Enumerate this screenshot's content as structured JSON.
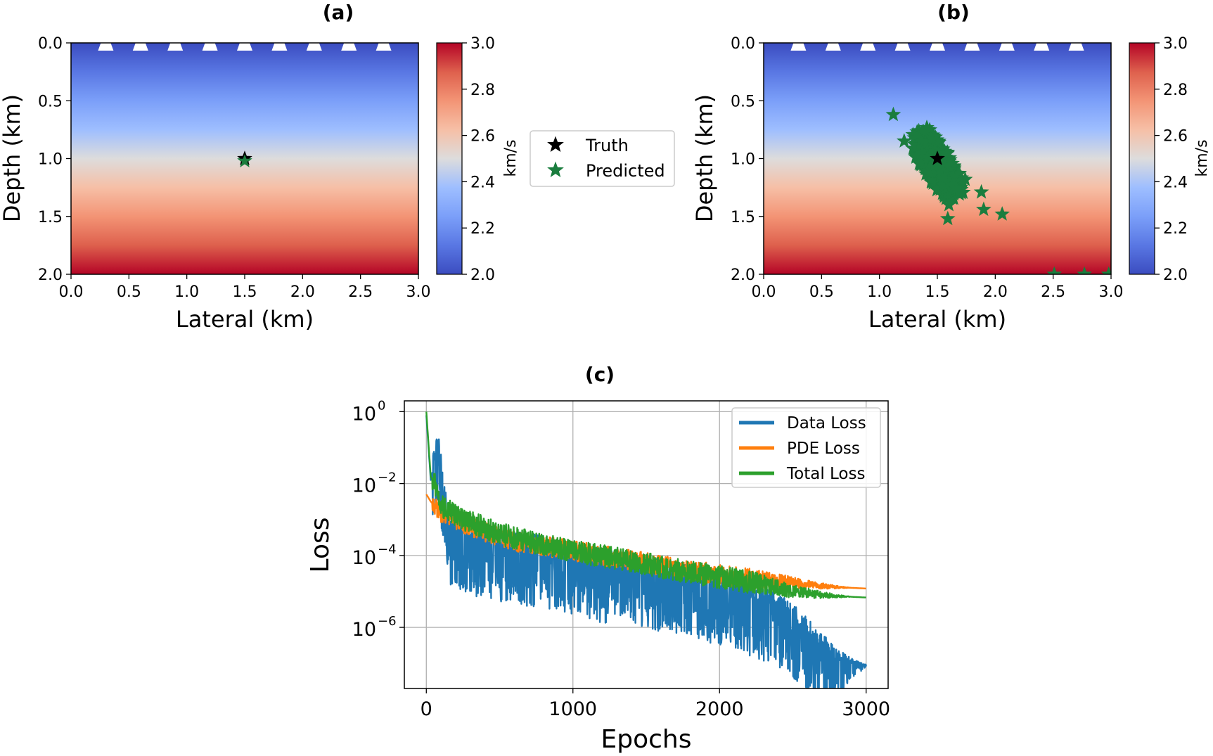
{
  "panels": {
    "a": {
      "label": "(a)",
      "xlabel": "Lateral (km)",
      "ylabel": "Depth (km)"
    },
    "b": {
      "label": "(b)",
      "xlabel": "Lateral (km)",
      "ylabel": "Depth (km)"
    },
    "c": {
      "label": "(c)",
      "xlabel": "Epochs",
      "ylabel": "Loss"
    }
  },
  "colorbar": {
    "label": "km/s",
    "ticks": [
      "2.0",
      "2.2",
      "2.4",
      "2.6",
      "2.8",
      "3.0"
    ]
  },
  "legend_top": {
    "truth": "Truth",
    "predicted": "Predicted"
  },
  "legend_c": {
    "data": "Data Loss",
    "pde": "PDE Loss",
    "total": "Total Loss"
  },
  "colors": {
    "truth": "#000000",
    "predicted": "#1a7d3e",
    "receiver": "#ffffff",
    "data_loss": "#1f77b4",
    "pde_loss": "#ff7f0e",
    "total_loss": "#2ca02c",
    "cmap_low": "#3b4cc0",
    "cmap_mid": "#dddddd",
    "cmap_high": "#b40426"
  },
  "chart_data": [
    {
      "type": "heatmap",
      "panel": "a",
      "title": "(a)",
      "xlabel": "Lateral (km)",
      "ylabel": "Depth (km)",
      "xlim": [
        0,
        3
      ],
      "ylim": [
        2,
        0
      ],
      "x_ticks": [
        "0.0",
        "0.5",
        "1.0",
        "1.5",
        "2.0",
        "2.5",
        "3.0"
      ],
      "y_ticks": [
        "0.0",
        "0.5",
        "1.0",
        "1.5",
        "2.0"
      ],
      "velocity_model": {
        "top_value": 2.0,
        "bottom_value": 3.0,
        "unit": "km/s",
        "vary": "linear with depth"
      },
      "color_range": [
        2.0,
        3.0
      ],
      "receivers_x": [
        0.3,
        0.6,
        0.9,
        1.2,
        1.5,
        1.8,
        2.1,
        2.4,
        2.7
      ],
      "receivers_depth": 0.0,
      "truth": {
        "x": 1.5,
        "z": 1.0
      },
      "predicted": [
        {
          "x": 1.5,
          "z": 1.02
        }
      ]
    },
    {
      "type": "heatmap",
      "panel": "b",
      "title": "(b)",
      "xlabel": "Lateral (km)",
      "ylabel": "Depth (km)",
      "xlim": [
        0,
        3
      ],
      "ylim": [
        2,
        0
      ],
      "x_ticks": [
        "0.0",
        "0.5",
        "1.0",
        "1.5",
        "2.0",
        "2.5",
        "3.0"
      ],
      "y_ticks": [
        "0.0",
        "0.5",
        "1.0",
        "1.5",
        "2.0"
      ],
      "velocity_model": {
        "top_value": 2.0,
        "bottom_value": 3.0,
        "unit": "km/s",
        "vary": "linear with depth"
      },
      "color_range": [
        2.0,
        3.0
      ],
      "receivers_x": [
        0.3,
        0.6,
        0.9,
        1.2,
        1.5,
        1.8,
        2.1,
        2.4,
        2.7
      ],
      "receivers_depth": 0.0,
      "truth": {
        "x": 1.5,
        "z": 1.0
      },
      "predicted_cluster": {
        "center": [
          1.5,
          1.05
        ],
        "axis_dir": [
          0.55,
          0.84
        ],
        "semi_major": 0.33,
        "semi_minor": 0.13
      },
      "predicted_outliers": [
        {
          "x": 1.12,
          "z": 0.62
        },
        {
          "x": 1.6,
          "z": 1.4
        },
        {
          "x": 1.59,
          "z": 1.52
        },
        {
          "x": 1.9,
          "z": 1.44
        },
        {
          "x": 2.06,
          "z": 1.48
        },
        {
          "x": 1.88,
          "z": 1.29
        },
        {
          "x": 2.51,
          "z": 2.0
        },
        {
          "x": 2.77,
          "z": 2.0
        },
        {
          "x": 2.98,
          "z": 2.0
        }
      ]
    },
    {
      "type": "line",
      "panel": "c",
      "title": "(c)",
      "xlabel": "Epochs",
      "ylabel": "Loss",
      "yscale": "log",
      "xlim": [
        -150,
        3150
      ],
      "ylim_exponent": [
        -7.7,
        0.3
      ],
      "x_ticks": [
        "0",
        "1000",
        "2000",
        "3000"
      ],
      "y_ticks": [
        "10",
        "10",
        "10",
        "10"
      ],
      "y_tick_exponents": [
        "0",
        "−2",
        "−4",
        "−6"
      ],
      "grid": true,
      "legend_position": "top-right",
      "series": [
        {
          "name": "Data Loss",
          "color": "#1f77b4",
          "points": [
            [
              0,
              -0.1
            ],
            [
              30,
              -1.9
            ],
            [
              80,
              -0.9
            ],
            [
              150,
              -3.2
            ],
            [
              300,
              -3.5
            ],
            [
              500,
              -3.7
            ],
            [
              800,
              -3.9
            ],
            [
              1100,
              -4.2
            ],
            [
              1400,
              -4.4
            ],
            [
              1700,
              -4.6
            ],
            [
              2000,
              -4.9
            ],
            [
              2200,
              -5.2
            ],
            [
              2400,
              -5.5
            ],
            [
              2500,
              -5.8
            ],
            [
              2600,
              -6.2
            ],
            [
              2700,
              -6.6
            ],
            [
              2800,
              -6.9
            ],
            [
              2900,
              -7.0
            ],
            [
              3000,
              -7.05
            ]
          ],
          "noise_amplitude": 1.0
        },
        {
          "name": "PDE Loss",
          "color": "#ff7f0e",
          "points": [
            [
              0,
              -2.3
            ],
            [
              30,
              -2.5
            ],
            [
              100,
              -2.8
            ],
            [
              300,
              -3.2
            ],
            [
              600,
              -3.6
            ],
            [
              900,
              -3.8
            ],
            [
              1200,
              -4.0
            ],
            [
              1500,
              -4.2
            ],
            [
              1800,
              -4.4
            ],
            [
              2100,
              -4.6
            ],
            [
              2400,
              -4.72
            ],
            [
              2500,
              -4.75
            ],
            [
              2600,
              -4.8
            ],
            [
              2700,
              -4.85
            ],
            [
              2800,
              -4.88
            ],
            [
              2900,
              -4.9
            ],
            [
              3000,
              -4.92
            ]
          ],
          "noise_amplitude": 0.4
        },
        {
          "name": "Total Loss",
          "color": "#2ca02c",
          "points": [
            [
              0,
              0.0
            ],
            [
              30,
              -1.8
            ],
            [
              80,
              -2.2
            ],
            [
              100,
              -2.6
            ],
            [
              200,
              -2.9
            ],
            [
              500,
              -3.4
            ],
            [
              800,
              -3.7
            ],
            [
              1100,
              -3.95
            ],
            [
              1400,
              -4.15
            ],
            [
              1700,
              -4.4
            ],
            [
              2000,
              -4.6
            ],
            [
              2300,
              -4.8
            ],
            [
              2500,
              -5.0
            ],
            [
              2600,
              -5.05
            ],
            [
              2700,
              -5.1
            ],
            [
              2800,
              -5.13
            ],
            [
              2900,
              -5.15
            ],
            [
              3000,
              -5.17
            ]
          ],
          "noise_amplitude": 0.45
        }
      ]
    }
  ]
}
